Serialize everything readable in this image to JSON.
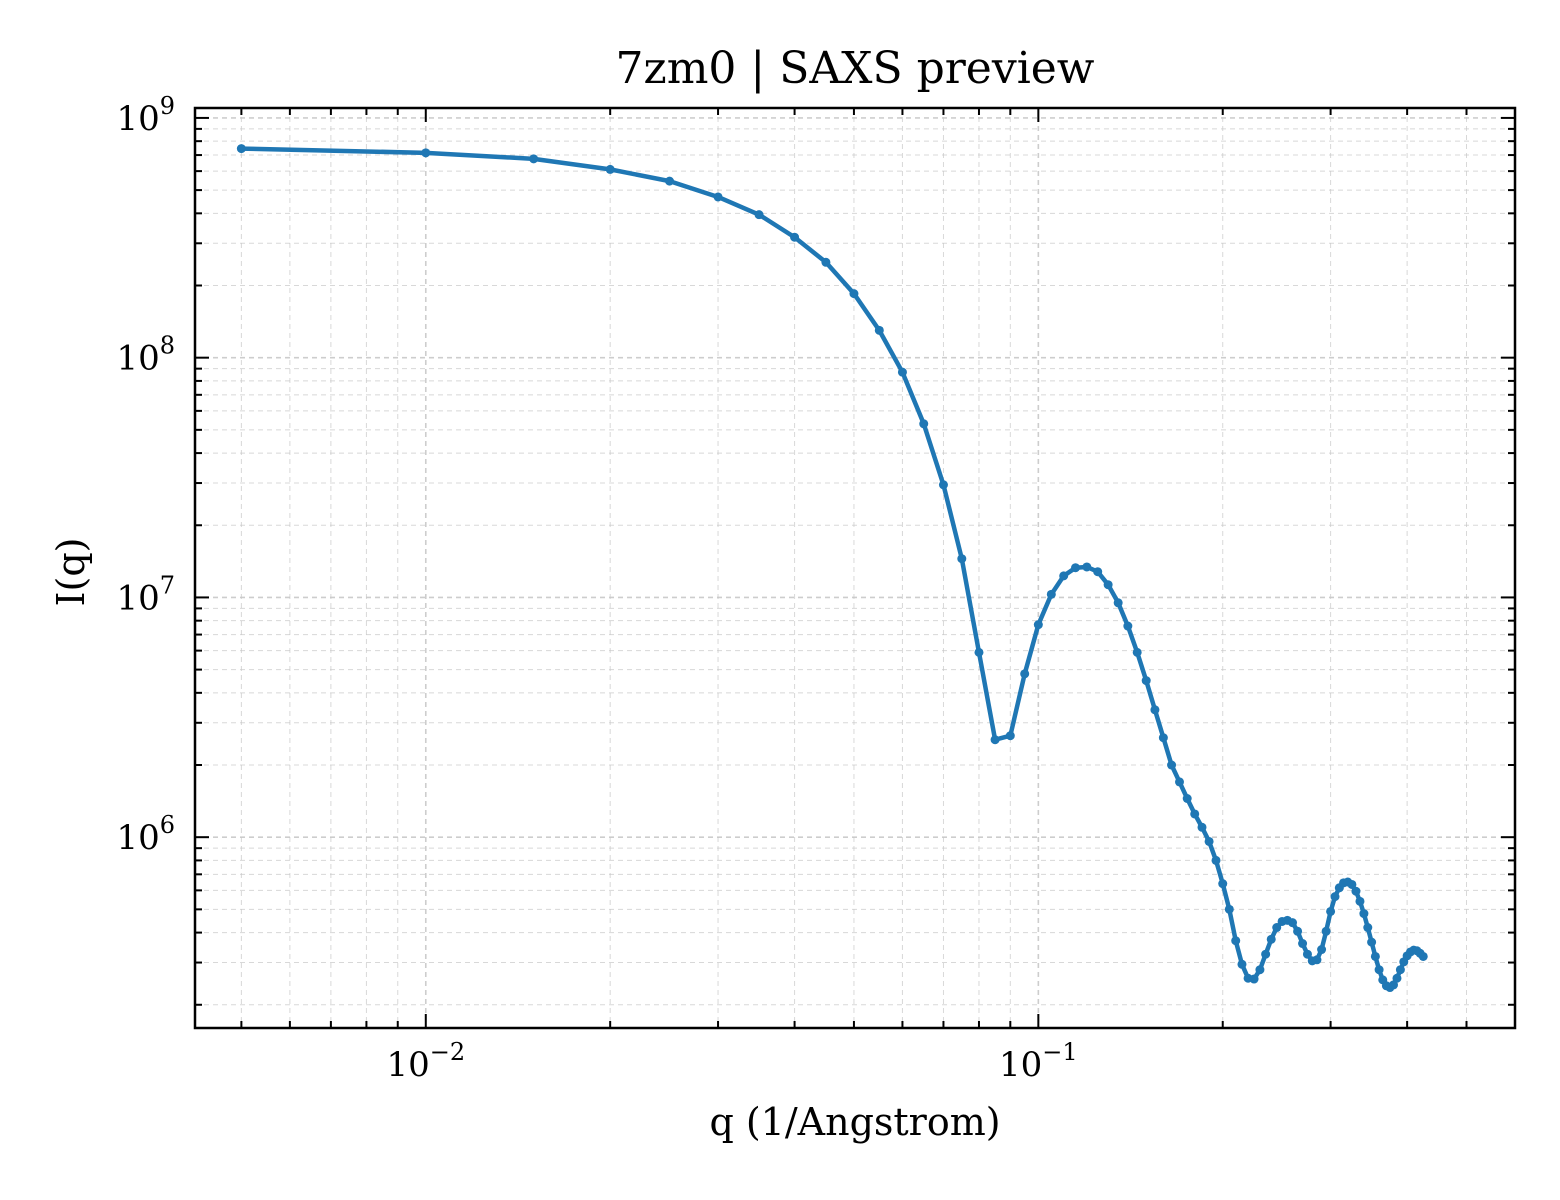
{
  "chart_data": {
    "type": "line",
    "title": "7zm0 | SAXS preview",
    "xlabel": "q (1/Angstrom)",
    "ylabel": "I(q)",
    "xscale": "log",
    "yscale": "log",
    "xlim": [
      0.0042,
      0.6
    ],
    "ylim": [
      160000,
      1100000000
    ],
    "grid": true,
    "line_color": "#1f77b4",
    "x_ticks": [
      {
        "base": "10",
        "exp": "−2",
        "value": 0.01
      },
      {
        "base": "10",
        "exp": "−1",
        "value": 0.1
      }
    ],
    "y_ticks": [
      {
        "base": "10",
        "exp": "6",
        "value": 1000000
      },
      {
        "base": "10",
        "exp": "7",
        "value": 10000000
      },
      {
        "base": "10",
        "exp": "8",
        "value": 100000000
      },
      {
        "base": "10",
        "exp": "9",
        "value": 1000000000
      }
    ],
    "series": [
      {
        "points": [
          [
            0.005,
            745000000
          ],
          [
            0.01,
            715000000
          ],
          [
            0.015,
            675000000
          ],
          [
            0.02,
            610000000
          ],
          [
            0.025,
            545000000
          ],
          [
            0.03,
            468000000
          ],
          [
            0.035,
            395000000
          ],
          [
            0.04,
            318000000
          ],
          [
            0.045,
            250000000
          ],
          [
            0.05,
            185000000
          ],
          [
            0.055,
            130000000
          ],
          [
            0.06,
            87000000
          ],
          [
            0.065,
            53000000
          ],
          [
            0.07,
            29500000
          ],
          [
            0.075,
            14500000
          ],
          [
            0.08,
            5900000
          ],
          [
            0.085,
            2550000
          ],
          [
            0.09,
            2650000
          ],
          [
            0.095,
            4800000
          ],
          [
            0.1,
            7700000
          ],
          [
            0.105,
            10300000
          ],
          [
            0.11,
            12300000
          ],
          [
            0.115,
            13300000
          ],
          [
            0.12,
            13400000
          ],
          [
            0.125,
            12800000
          ],
          [
            0.13,
            11300000
          ],
          [
            0.135,
            9500000
          ],
          [
            0.14,
            7600000
          ],
          [
            0.145,
            5900000
          ],
          [
            0.15,
            4500000
          ],
          [
            0.155,
            3400000
          ],
          [
            0.16,
            2600000
          ],
          [
            0.165,
            2000000
          ],
          [
            0.17,
            1700000
          ],
          [
            0.175,
            1450000
          ],
          [
            0.18,
            1250000
          ],
          [
            0.185,
            1100000
          ],
          [
            0.19,
            960000
          ],
          [
            0.195,
            800000
          ],
          [
            0.2,
            640000
          ],
          [
            0.205,
            500000
          ],
          [
            0.21,
            370000
          ],
          [
            0.215,
            295000
          ],
          [
            0.22,
            258000
          ],
          [
            0.225,
            256000
          ],
          [
            0.23,
            280000
          ],
          [
            0.235,
            325000
          ],
          [
            0.24,
            375000
          ],
          [
            0.245,
            420000
          ],
          [
            0.25,
            445000
          ],
          [
            0.255,
            450000
          ],
          [
            0.26,
            440000
          ],
          [
            0.265,
            405000
          ],
          [
            0.27,
            360000
          ],
          [
            0.275,
            325000
          ],
          [
            0.28,
            305000
          ],
          [
            0.285,
            308000
          ],
          [
            0.29,
            340000
          ],
          [
            0.295,
            405000
          ],
          [
            0.3,
            490000
          ],
          [
            0.305,
            565000
          ],
          [
            0.31,
            615000
          ],
          [
            0.315,
            645000
          ],
          [
            0.32,
            650000
          ],
          [
            0.325,
            635000
          ],
          [
            0.33,
            595000
          ],
          [
            0.335,
            540000
          ],
          [
            0.34,
            480000
          ],
          [
            0.345,
            420000
          ],
          [
            0.35,
            365000
          ],
          [
            0.355,
            318000
          ],
          [
            0.36,
            280000
          ],
          [
            0.365,
            254000
          ],
          [
            0.37,
            240000
          ],
          [
            0.375,
            236000
          ],
          [
            0.38,
            242000
          ],
          [
            0.385,
            258000
          ],
          [
            0.39,
            280000
          ],
          [
            0.395,
            302000
          ],
          [
            0.4,
            320000
          ],
          [
            0.405,
            332000
          ],
          [
            0.41,
            338000
          ],
          [
            0.415,
            336000
          ],
          [
            0.42,
            328000
          ],
          [
            0.425,
            318000
          ]
        ]
      }
    ]
  }
}
